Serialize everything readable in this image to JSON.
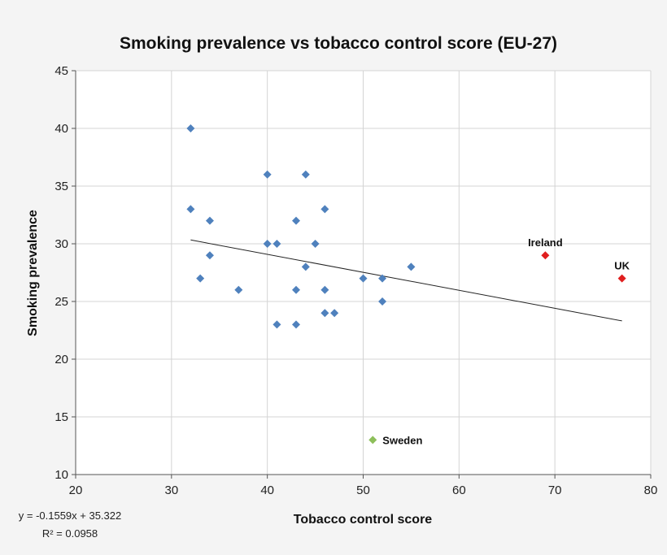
{
  "chart_data": {
    "type": "scatter",
    "title": "Smoking  prevalence vs tobacco control score  (EU-27)",
    "xlabel": "Tobacco control score",
    "ylabel": "Smoking prevalence",
    "xlim": [
      20,
      80
    ],
    "ylim": [
      10,
      45
    ],
    "x_ticks": [
      20,
      30,
      40,
      50,
      60,
      70,
      80
    ],
    "y_ticks": [
      10,
      15,
      20,
      25,
      30,
      35,
      40,
      45
    ],
    "grid": true,
    "colors": {
      "default_point": "#4f81bd",
      "highlight_point": "#e01f1f",
      "sweden_point": "#8dbf5a",
      "background": "#ffffff"
    },
    "points": [
      {
        "x": 32,
        "y": 40
      },
      {
        "x": 32,
        "y": 33
      },
      {
        "x": 33,
        "y": 27
      },
      {
        "x": 34,
        "y": 32
      },
      {
        "x": 34,
        "y": 29
      },
      {
        "x": 37,
        "y": 26
      },
      {
        "x": 40,
        "y": 36
      },
      {
        "x": 40,
        "y": 30
      },
      {
        "x": 41,
        "y": 30
      },
      {
        "x": 41,
        "y": 23
      },
      {
        "x": 43,
        "y": 32
      },
      {
        "x": 43,
        "y": 26
      },
      {
        "x": 43,
        "y": 23
      },
      {
        "x": 44,
        "y": 36
      },
      {
        "x": 44,
        "y": 28
      },
      {
        "x": 45,
        "y": 30
      },
      {
        "x": 46,
        "y": 33
      },
      {
        "x": 46,
        "y": 26
      },
      {
        "x": 46,
        "y": 24
      },
      {
        "x": 47,
        "y": 24
      },
      {
        "x": 50,
        "y": 27
      },
      {
        "x": 52,
        "y": 27
      },
      {
        "x": 52,
        "y": 25
      },
      {
        "x": 55,
        "y": 28
      },
      {
        "x": 69,
        "y": 29,
        "label": "Ireland",
        "highlight": "red"
      },
      {
        "x": 77,
        "y": 27,
        "label": "UK",
        "highlight": "red"
      },
      {
        "x": 51,
        "y": 13,
        "label": "Sweden",
        "highlight": "green"
      }
    ],
    "trendline": {
      "type": "linear",
      "slope": -0.1559,
      "intercept": 35.322,
      "x_range": [
        32,
        77
      ],
      "equation": "y = -0.1559x + 35.322",
      "r_squared": "R² = 0.0958"
    }
  }
}
